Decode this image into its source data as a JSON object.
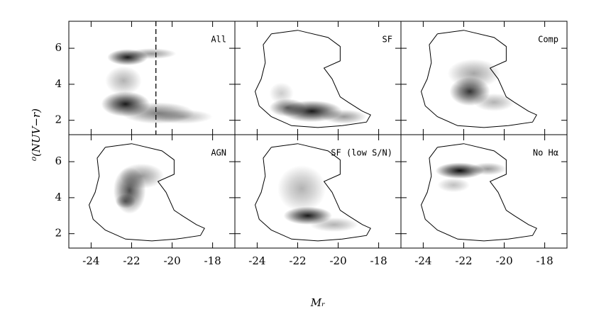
{
  "chart_data": {
    "type": "density-grid",
    "xlabel": "Mᵣ",
    "ylabel": "⁰(NUV−r)",
    "xlim": [
      -25.1,
      -16.9
    ],
    "ylim": [
      1.2,
      7.5
    ],
    "xticks": [
      -24,
      -22,
      -20,
      -18
    ],
    "yticks": [
      2,
      4,
      6
    ],
    "color": "#000000",
    "contour": {
      "x": [
        -23.3,
        -22,
        -20.5,
        -19.9,
        -19.9,
        -20.7,
        -20.3,
        -19.9,
        -19.5,
        -18.8,
        -18.4,
        -18.6,
        -19.8,
        -21,
        -22.3,
        -23.3,
        -23.9,
        -24.1,
        -23.8,
        -23.6,
        -23.7,
        -23.3
      ],
      "y": [
        6.8,
        7.0,
        6.6,
        6.1,
        5.3,
        4.9,
        4.3,
        3.3,
        3.0,
        2.5,
        2.3,
        1.9,
        1.7,
        1.6,
        1.7,
        2.2,
        2.8,
        3.6,
        4.3,
        5.2,
        6.2,
        6.8
      ]
    },
    "panels": [
      {
        "label": "All",
        "contour": false,
        "vline": -20.8,
        "blobs": [
          {
            "x": -22.2,
            "y": 5.5,
            "rx": 1.0,
            "ry": 0.45,
            "d": 0.9
          },
          {
            "x": -22.3,
            "y": 2.9,
            "rx": 1.2,
            "ry": 0.7,
            "d": 0.9
          },
          {
            "x": -20.7,
            "y": 2.4,
            "rx": 1.8,
            "ry": 0.6,
            "d": 0.5
          },
          {
            "x": -22.4,
            "y": 4.2,
            "rx": 0.9,
            "ry": 0.8,
            "d": 0.3
          },
          {
            "x": -19.5,
            "y": 2.2,
            "rx": 1.5,
            "ry": 0.4,
            "d": 0.3
          },
          {
            "x": -21,
            "y": 5.7,
            "rx": 1.2,
            "ry": 0.3,
            "d": 0.4
          }
        ]
      },
      {
        "label": "SF",
        "contour": true,
        "blobs": [
          {
            "x": -21.3,
            "y": 2.5,
            "rx": 1.5,
            "ry": 0.6,
            "d": 0.9
          },
          {
            "x": -22.5,
            "y": 2.7,
            "rx": 0.9,
            "ry": 0.5,
            "d": 0.6
          },
          {
            "x": -19.7,
            "y": 2.2,
            "rx": 1.1,
            "ry": 0.4,
            "d": 0.4
          },
          {
            "x": -22.8,
            "y": 3.5,
            "rx": 0.6,
            "ry": 0.6,
            "d": 0.2
          }
        ]
      },
      {
        "label": "Comp",
        "contour": true,
        "blobs": [
          {
            "x": -21.7,
            "y": 3.6,
            "rx": 1.0,
            "ry": 0.8,
            "d": 0.8
          },
          {
            "x": -21.5,
            "y": 4.6,
            "rx": 1.3,
            "ry": 0.8,
            "d": 0.35
          },
          {
            "x": -20.5,
            "y": 3.0,
            "rx": 1.0,
            "ry": 0.5,
            "d": 0.3
          }
        ]
      },
      {
        "label": "AGN",
        "contour": true,
        "blobs": [
          {
            "x": -22.1,
            "y": 4.4,
            "rx": 0.8,
            "ry": 1.3,
            "d": 0.7
          },
          {
            "x": -21.5,
            "y": 5.2,
            "rx": 1.1,
            "ry": 0.7,
            "d": 0.4
          },
          {
            "x": -22.3,
            "y": 3.8,
            "rx": 0.5,
            "ry": 0.4,
            "d": 0.5
          }
        ]
      },
      {
        "label": "SF (low S/N)",
        "contour": true,
        "blobs": [
          {
            "x": -21.5,
            "y": 3.0,
            "rx": 1.2,
            "ry": 0.5,
            "d": 0.9
          },
          {
            "x": -21.8,
            "y": 4.5,
            "rx": 1.2,
            "ry": 1.3,
            "d": 0.3
          },
          {
            "x": -20.2,
            "y": 2.5,
            "rx": 1.2,
            "ry": 0.4,
            "d": 0.3
          }
        ]
      },
      {
        "label": "No Hα",
        "contour": true,
        "blobs": [
          {
            "x": -22.2,
            "y": 5.5,
            "rx": 1.2,
            "ry": 0.45,
            "d": 0.95
          },
          {
            "x": -20.8,
            "y": 5.6,
            "rx": 0.9,
            "ry": 0.35,
            "d": 0.4
          },
          {
            "x": -22.5,
            "y": 4.7,
            "rx": 0.8,
            "ry": 0.4,
            "d": 0.25
          }
        ]
      }
    ]
  }
}
